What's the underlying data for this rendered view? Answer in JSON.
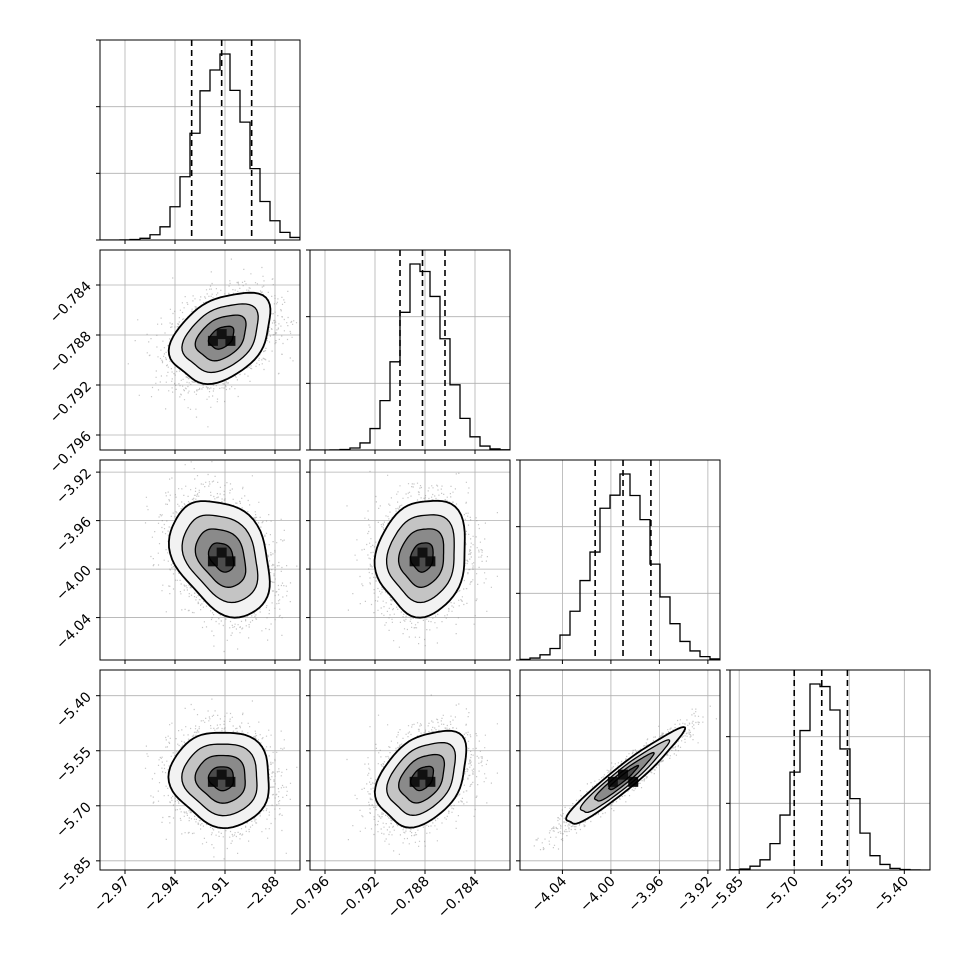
{
  "chart_data": {
    "type": "corner",
    "grid": true,
    "parameters": [
      {
        "samples_mean": -2.912,
        "samples_sd": 0.015,
        "quantiles": [
          -2.93,
          -2.912,
          -2.894
        ],
        "range": [
          -2.985,
          -2.865
        ],
        "ticks": [
          -2.97,
          -2.94,
          -2.91,
          -2.88
        ],
        "tick_labels": [
          "−2.97",
          "−2.94",
          "−2.91",
          "−2.88"
        ],
        "hist_peak_counts": [
          0,
          1,
          2,
          3
        ]
      },
      {
        "samples_mean": -0.7882,
        "samples_sd": 0.0018,
        "quantiles": [
          -0.79,
          -0.7882,
          -0.7864
        ],
        "range": [
          -0.7972,
          -0.7812
        ],
        "ticks": [
          -0.796,
          -0.792,
          -0.788,
          -0.784
        ],
        "tick_labels": [
          "−0.796",
          "−0.792",
          "−0.788",
          "−0.784"
        ]
      },
      {
        "samples_mean": -3.99,
        "samples_sd": 0.024,
        "quantiles": [
          -4.013,
          -3.99,
          -3.967
        ],
        "range": [
          -4.075,
          -3.91
        ],
        "ticks": [
          -4.04,
          -4.0,
          -3.96,
          -3.92
        ],
        "tick_labels": [
          "−4.04",
          "−4.00",
          "−3.96",
          "−3.92"
        ]
      },
      {
        "samples_mean": -5.625,
        "samples_sd": 0.065,
        "quantiles": [
          -5.7,
          -5.625,
          -5.555
        ],
        "range": [
          -5.875,
          -5.33
        ],
        "ticks": [
          -5.85,
          -5.7,
          -5.55,
          -5.4
        ],
        "tick_labels": [
          "−5.85",
          "−5.70",
          "−5.55",
          "−5.40"
        ]
      }
    ],
    "correlations": {
      "0-1": 0.35,
      "0-2": -0.3,
      "0-3": -0.05,
      "1-2": 0.1,
      "1-3": 0.35,
      "2-3": 0.95
    },
    "quantile_levels": [
      0.16,
      0.5,
      0.84
    ],
    "contour_levels_sigma": [
      0.5,
      1.0,
      1.5,
      2.0
    ],
    "colors": {
      "hist": "#000000",
      "points": "#808080",
      "density_dark": "#000000",
      "grid": "#b0b0b0"
    }
  }
}
